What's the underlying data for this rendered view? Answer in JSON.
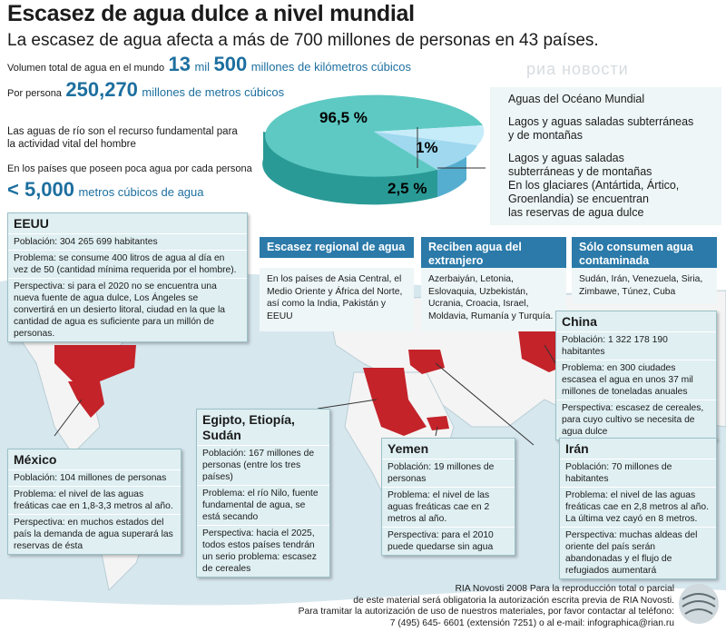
{
  "header": {
    "title": "Escasez de agua dulce a nivel mundial",
    "subtitle": "La escasez de agua afecta a más de 700 millones de personas en 43 países."
  },
  "stats": {
    "total": {
      "label": "Volumen total de agua en el mundo",
      "value_main": "13",
      "value_mil": "mil",
      "value_rest": "500",
      "unit": "millones de kilómetros cúbicos"
    },
    "per_person": {
      "label": "Por persona",
      "value": "250,270",
      "unit": "millones de metros cúbicos"
    },
    "river_note": "Las aguas de río son el recurso fundamental para la actividad vital del hombre",
    "poor_countries": {
      "label": "En los países que poseen poca agua por cada persona",
      "value": "< 5,000",
      "unit": "metros cúbicos de agua"
    }
  },
  "chart_data": {
    "type": "pie",
    "slices": [
      {
        "label": "96,5 %",
        "value": 96.5,
        "legend": "Aguas del Océano Mundial"
      },
      {
        "label": "1%",
        "value": 1,
        "legend": "Lagos y aguas saladas subterráneas y de montañas"
      },
      {
        "label": "2,5 %",
        "value": 2.5,
        "legend": "Lagos y aguas saladas subterráneas y de montañas En los glaciares (Antártida, Ártico, Groenlandia) se encuentran las reservas de agua dulce"
      }
    ],
    "legend_lines": [
      [
        "Aguas del Océano Mundial"
      ],
      [
        "Lagos y aguas saladas subterráneas",
        "y de montañas"
      ],
      [
        "Lagos y aguas saladas",
        "subterráneas y de montañas",
        "En los glaciares (Antártida, Ártico,",
        "Groenlandia) se encuentran",
        "las reservas de agua dulce"
      ]
    ],
    "colors": {
      "ocean_top": "#5ec9c3",
      "ocean_side": "#2a9a96",
      "fresh": "#9fd8ef",
      "fresh_side": "#55aecf"
    }
  },
  "categories": {
    "regional": {
      "title": "Escasez regional de agua",
      "text": "En los países de Asia Central, el Medio Oriente y África del Norte, así como la India, Pakistán y EEUU"
    },
    "abroad": {
      "title": "Reciben agua del extranjero",
      "text": "Azerbaiyán, Letonia, Eslovaquia, Uzbekistán, Ucrania, Croacia, Israel, Moldavia, Rumanía y Turquía."
    },
    "contaminated": {
      "title": "Sólo consumen agua contaminada",
      "text": "Sudán, Irán, Venezuela, Siria, Zimbawe, Túnez, Cuba"
    }
  },
  "countries": {
    "eeuu": {
      "name": "EEUU",
      "lines": [
        "Población: 304 265 699 habitantes",
        "Problema: se consume 400 litros de agua al día en vez de 50 (cantidad mínima requerida por el hombre).",
        "Perspectiva: si para el 2020 no se encuentra una nueva fuente de agua dulce, Los Ángeles se convertirá en un desierto litoral, ciudad en la que la cantidad de agua es suficiente para un millón de personas."
      ]
    },
    "china": {
      "name": "China",
      "lines": [
        "Población: 1 322 178 190 habitantes",
        "Problema: en 300 ciudades escasea el agua en unos 37 mil millones de toneladas anuales",
        "Perspectiva: escasez de cereales, para cuyo cultivo se necesita de agua dulce"
      ]
    },
    "mexico": {
      "name": "México",
      "lines": [
        "Población: 104 millones de personas",
        "Problema: el nivel de las aguas freáticas cae en 1,8-3,3 metros al año.",
        "Perspectiva: en muchos estados del país la demanda de agua superará las reservas de ésta"
      ]
    },
    "egipto": {
      "name": "Egipto, Etiopía, Sudán",
      "lines": [
        "Población: 167 millones de personas (entre los tres países)",
        "Problema: el río Nilo, fuente fundamental de agua, se está secando",
        "Perspectiva: hacia el 2025, todos estos países tendrán un serio problema: escasez de cereales"
      ]
    },
    "yemen": {
      "name": "Yemen",
      "lines": [
        "Población: 19 millones de personas",
        "Problema: el nivel de las aguas freáticas cae en 2 metros al año.",
        "Perspectiva: para el 2010 puede quedarse sin agua"
      ]
    },
    "iran": {
      "name": "Irán",
      "lines": [
        "Población: 70 millones de habitantes",
        "Problema: el nivel de las aguas freáticas cae en 2,8 metros al año. La última vez cayó en 8 metros.",
        "Perspectiva: muchas aldeas del oriente del país serán abandonadas y el flujo de refugiados aumentará"
      ]
    }
  },
  "watermark": "риа новости",
  "credit": [
    "RIA Novosti 2008 Para la reproducción total o parcial",
    "de este material será obligatoria la autorización escrita previa de RIA Novosti.",
    "Para tramitar la autorización de uso de nuestros materiales, por favor contactar al teléfono:",
    "7 (495) 645- 6601 (extensión 7251) o al e-mail: infographica@rian.ru"
  ],
  "colors": {
    "accent": "#1d6f9f",
    "header_bg": "#2b7aa9",
    "box_bg": "#dfeff2",
    "map_sea": "#d7e7ee",
    "map_land": "#f4f4f4",
    "highlight": "#c4232a"
  }
}
